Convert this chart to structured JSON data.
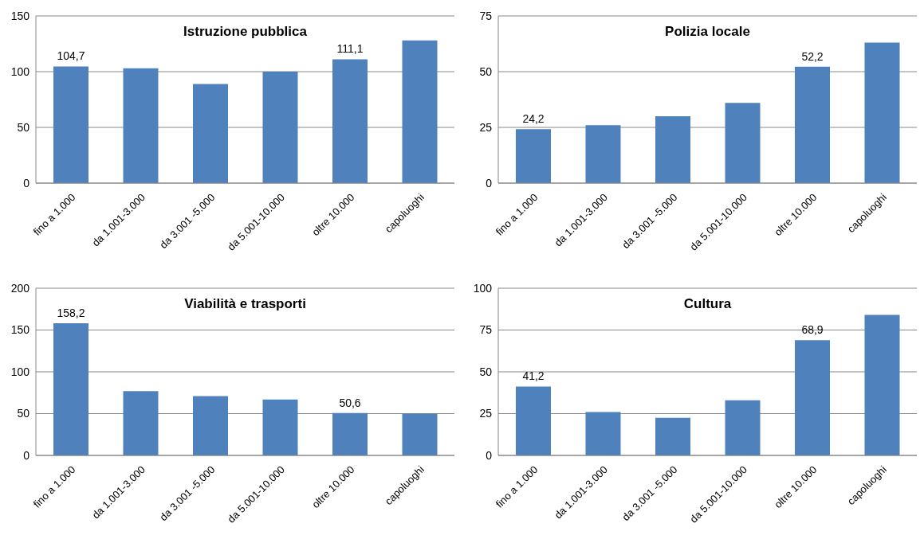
{
  "chart_data": [
    {
      "type": "bar",
      "title": "Istruzione pubblica",
      "categories": [
        "fino a 1.000",
        "da 1.001-3.000",
        "da 3.001 -5.000",
        "da 5.001-10.000",
        "oltre 10.000",
        "capoluoghi"
      ],
      "values": [
        104.7,
        103,
        89,
        100,
        111.1,
        128
      ],
      "value_labels": [
        "104,7",
        null,
        null,
        null,
        "111,1",
        null
      ],
      "color": "#4f81bd",
      "ylim": [
        0,
        150
      ],
      "yticks": [
        0,
        50,
        100,
        150
      ],
      "grid": "y"
    },
    {
      "type": "bar",
      "title": "Polizia locale",
      "categories": [
        "fino a 1.000",
        "da 1.001-3.000",
        "da 3.001 -5.000",
        "da 5.001-10.000",
        "oltre 10.000",
        "capoluoghi"
      ],
      "values": [
        24.2,
        26,
        30,
        36,
        52.2,
        63
      ],
      "value_labels": [
        "24,2",
        null,
        null,
        null,
        "52,2",
        null
      ],
      "color": "#4f81bd",
      "ylim": [
        0,
        75
      ],
      "yticks": [
        0,
        25,
        50,
        75
      ],
      "grid": "y"
    },
    {
      "type": "bar",
      "title": "Viabilità e trasporti",
      "categories": [
        "fino a 1.000",
        "da 1.001-3.000",
        "da 3.001 -5.000",
        "da 5.001-10.000",
        "oltre 10.000",
        "capoluoghi"
      ],
      "values": [
        158.2,
        77,
        71,
        67,
        50.6,
        50
      ],
      "value_labels": [
        "158,2",
        null,
        null,
        null,
        "50,6",
        null
      ],
      "color": "#4f81bd",
      "ylim": [
        0,
        200
      ],
      "yticks": [
        0,
        50,
        100,
        150,
        200
      ],
      "grid": "y"
    },
    {
      "type": "bar",
      "title": "Cultura",
      "categories": [
        "fino a 1.000",
        "da 1.001-3.000",
        "da 3.001 -5.000",
        "da 5.001-10.000",
        "oltre 10.000",
        "capoluoghi"
      ],
      "values": [
        41.2,
        26,
        22.5,
        33,
        68.9,
        84
      ],
      "value_labels": [
        "41,2",
        null,
        null,
        null,
        "68,9",
        null
      ],
      "color": "#4f81bd",
      "ylim": [
        0,
        100
      ],
      "yticks": [
        0,
        25,
        50,
        75,
        100
      ],
      "grid": "y"
    }
  ]
}
